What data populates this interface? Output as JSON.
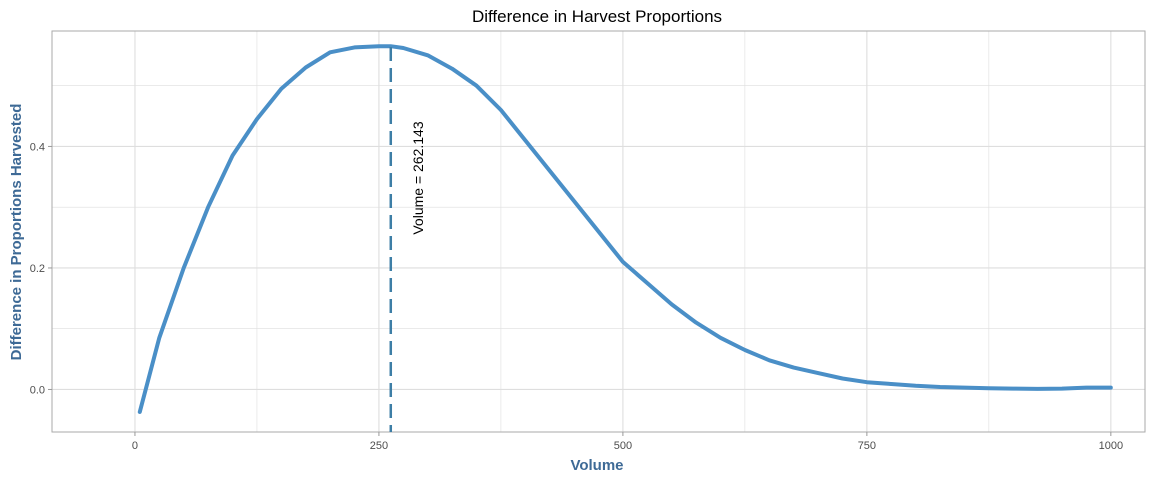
{
  "chart_data": {
    "type": "line",
    "title": "Difference in Harvest Proportions",
    "xlabel": "Volume",
    "ylabel": "Difference in Proportions Harvested",
    "xlim": [
      -85,
      1035
    ],
    "ylim": [
      -0.07,
      0.59
    ],
    "x_ticks": [
      0,
      250,
      500,
      750,
      1000
    ],
    "x_tick_labels": [
      "0",
      "250",
      "500",
      "750",
      "1000"
    ],
    "y_ticks": [
      0.0,
      0.2,
      0.4
    ],
    "y_tick_labels": [
      "0.0",
      "0.2",
      "0.4"
    ],
    "grid": true,
    "series": [
      {
        "x": [
          5,
          25,
          50,
          75,
          100,
          125,
          150,
          175,
          200,
          225,
          250,
          262,
          275,
          300,
          325,
          350,
          375,
          400,
          425,
          450,
          475,
          500,
          525,
          550,
          575,
          600,
          625,
          650,
          675,
          700,
          725,
          750,
          775,
          800,
          825,
          850,
          875,
          900,
          925,
          950,
          975,
          1000
        ],
        "y": [
          -0.037,
          0.085,
          0.2,
          0.3,
          0.385,
          0.445,
          0.495,
          0.53,
          0.555,
          0.563,
          0.565,
          0.565,
          0.562,
          0.55,
          0.528,
          0.5,
          0.46,
          0.41,
          0.36,
          0.31,
          0.26,
          0.21,
          0.175,
          0.14,
          0.11,
          0.085,
          0.065,
          0.048,
          0.036,
          0.027,
          0.018,
          0.012,
          0.009,
          0.006,
          0.004,
          0.003,
          0.002,
          0.0015,
          0.001,
          0.0015,
          0.003,
          0.003
        ]
      }
    ],
    "vline": {
      "x": 262.143,
      "label": "Volume =  262.143"
    },
    "colors": {
      "line": "#4a8fc7",
      "vline": "#3d7ea6",
      "axis_title": "#3e6a96",
      "grid": "#dedede",
      "panel_border": "#aaaaaa"
    }
  }
}
